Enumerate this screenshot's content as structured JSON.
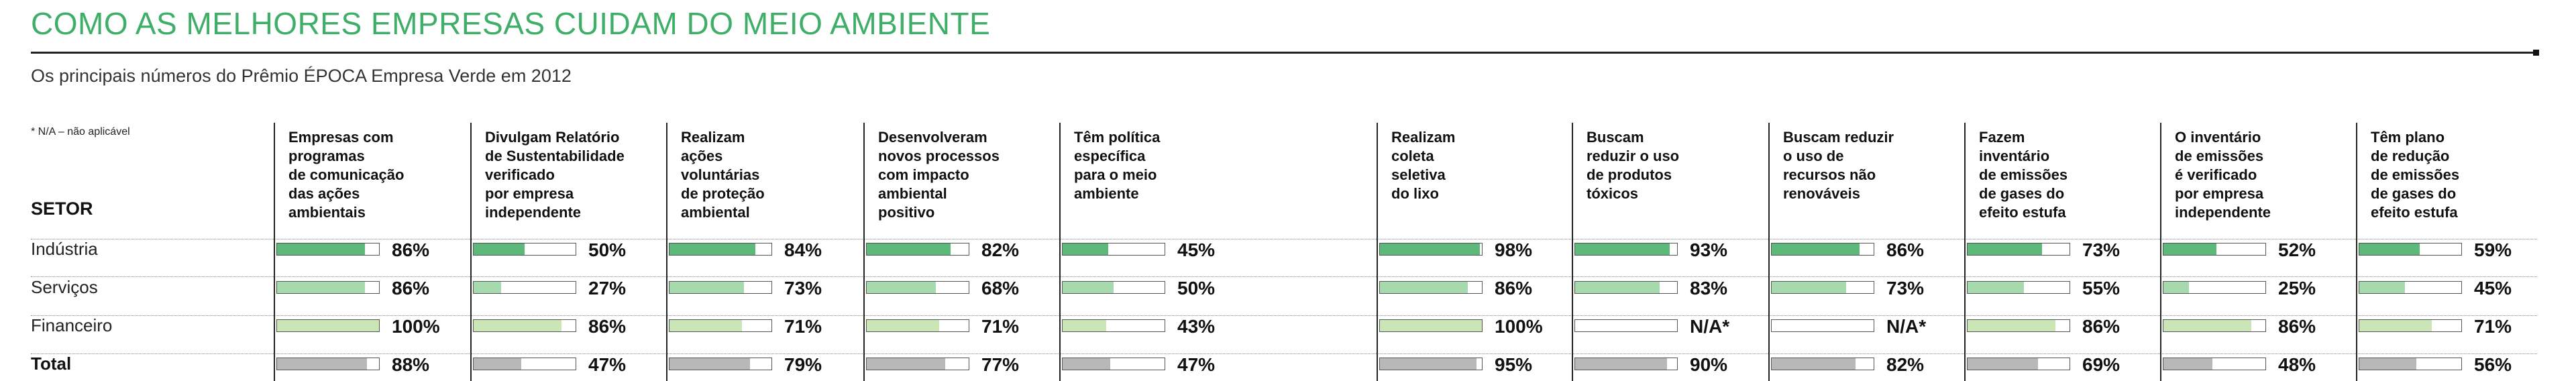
{
  "title": "COMO AS MELHORES EMPRESAS CUIDAM DO MEIO AMBIENTE",
  "subtitle": "Os principais números do Prêmio ÉPOCA Empresa Verde em 2012",
  "note": "* N/A – não aplicável",
  "setor_label": "SETOR",
  "colors": {
    "title": "#3fae68",
    "Indústria": "#5cb97a",
    "Serviços": "#a6d9ad",
    "Financeiro": "#cbe6b6",
    "Total": "#b8b8b8"
  },
  "chart_data": {
    "type": "bar",
    "rows": [
      "Indústria",
      "Serviços",
      "Financeiro",
      "Total"
    ],
    "columns": [
      {
        "label": "Empresas com\nprogramas\nde comunicação\ndas ações\nambientais",
        "values": [
          86,
          86,
          100,
          88
        ],
        "labels": [
          "86%",
          "86%",
          "100%",
          "88%"
        ]
      },
      {
        "label": "Divulgam Relatório\nde Sustentabilidade\nverificado\npor empresa\nindependente",
        "values": [
          50,
          27,
          86,
          47
        ],
        "labels": [
          "50%",
          "27%",
          "86%",
          "47%"
        ]
      },
      {
        "label": "Realizam\nações\nvoluntárias\nde proteção\nambiental",
        "values": [
          84,
          73,
          71,
          79
        ],
        "labels": [
          "84%",
          "73%",
          "71%",
          "79%"
        ]
      },
      {
        "label": "Desenvolveram\nnovos processos\ncom impacto\nambiental\npositivo",
        "values": [
          82,
          68,
          71,
          77
        ],
        "labels": [
          "82%",
          "68%",
          "71%",
          "77%"
        ]
      },
      {
        "label": "Têm política\nespecífica\npara o meio\nambiente",
        "values": [
          45,
          50,
          43,
          47
        ],
        "labels": [
          "45%",
          "50%",
          "43%",
          "47%"
        ]
      },
      {
        "label": "Realizam\ncoleta\nseletiva\ndo lixo",
        "values": [
          98,
          86,
          100,
          95
        ],
        "labels": [
          "98%",
          "86%",
          "100%",
          "95%"
        ]
      },
      {
        "label": "Buscam\nreduzir o uso\nde produtos\ntóxicos",
        "values": [
          93,
          83,
          null,
          90
        ],
        "labels": [
          "93%",
          "83%",
          "N/A*",
          "90%"
        ]
      },
      {
        "label": "Buscam reduzir\no uso de\nrecursos não\nrenováveis",
        "values": [
          86,
          73,
          null,
          82
        ],
        "labels": [
          "86%",
          "73%",
          "N/A*",
          "82%"
        ]
      },
      {
        "label": "Fazem\ninventário\nde emissões\nde gases do\nefeito estufa",
        "values": [
          73,
          55,
          86,
          69
        ],
        "labels": [
          "73%",
          "55%",
          "86%",
          "69%"
        ]
      },
      {
        "label": "O inventário\nde emissões\né verificado\npor empresa\nindependente",
        "values": [
          52,
          25,
          86,
          48
        ],
        "labels": [
          "52%",
          "25%",
          "86%",
          "48%"
        ]
      },
      {
        "label": "Têm plano\nde redução\nde emissões\nde gases do\nefeito estufa",
        "values": [
          59,
          45,
          71,
          56
        ],
        "labels": [
          "59%",
          "45%",
          "71%",
          "56%"
        ]
      }
    ],
    "ylim": [
      0,
      100
    ]
  }
}
